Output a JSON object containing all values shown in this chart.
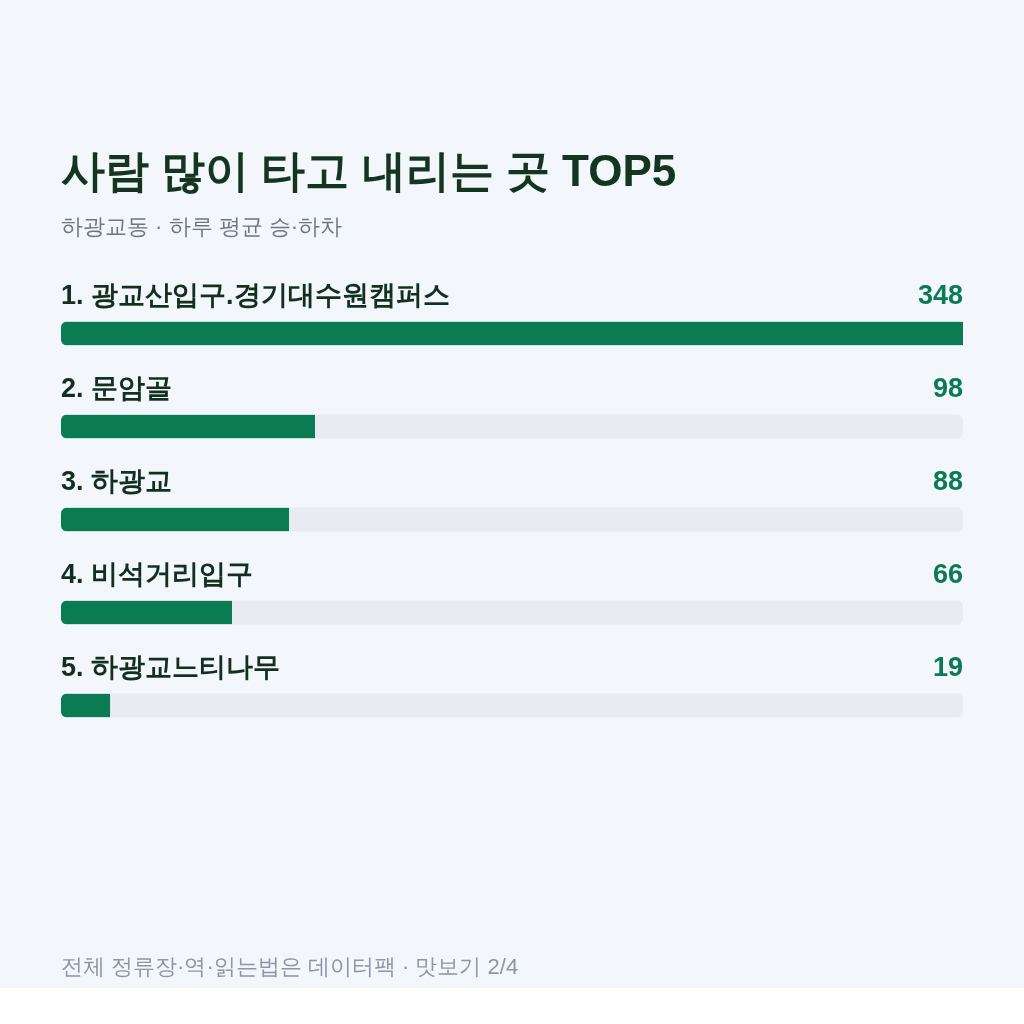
{
  "chart_data": {
    "type": "bar",
    "orientation": "horizontal",
    "title": "사람 많이 타고 내리는 곳 TOP5",
    "subtitle": "하광교동 · 하루 평균 승·하차",
    "categories": [
      "1. 광교산입구.경기대수원캠퍼스",
      "2. 문암골",
      "3. 하광교",
      "4. 비석거리입구",
      "5. 하광교느티나무"
    ],
    "values": [
      348,
      98,
      88,
      66,
      19
    ],
    "color": "#0a7b52",
    "data_labels": true,
    "annotations": [
      "전체 정류장·역·읽는법은 데이터팩 · 맛보기 2/4"
    ]
  }
}
